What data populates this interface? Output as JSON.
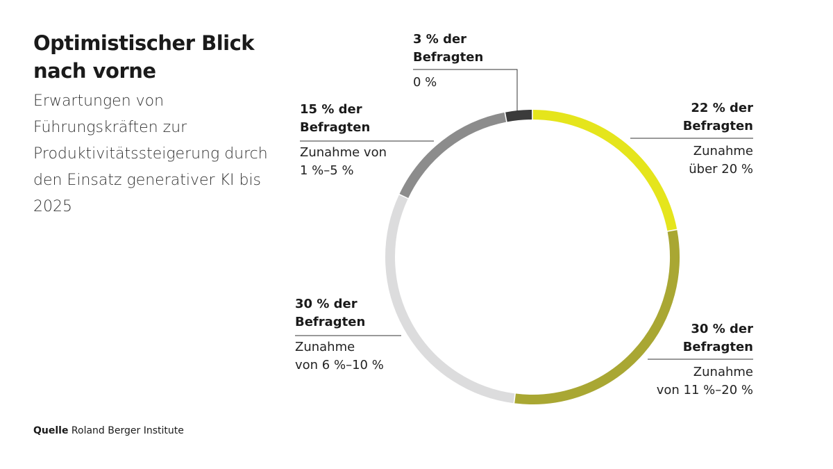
{
  "chart_data": {
    "type": "donut",
    "title": "Optimistischer Blick nach vorne",
    "subtitle": "Erwartungen von Führungskräften zur Produktivitätssteigerung durch den Einsatz generativer KI bis 2025",
    "categories": [
      "Zunahme\nüber 20 %",
      "Zunahme\nvon 11 %–20 %",
      "Zunahme\nvon 6 %–10 %",
      "Zunahme von\n1 %–5 %",
      "0 %"
    ],
    "values": [
      22,
      30,
      30,
      15,
      3
    ],
    "value_labels": [
      "22 % der\nBefragten",
      "30 % der\nBefragten",
      "30 % der\nBefragten",
      "15 % der\nBefragten",
      "3 % der\nBefragten"
    ],
    "colors": [
      "#e5e51c",
      "#a9a733",
      "#dcdcdd",
      "#8c8c8c",
      "#3b3b3b"
    ],
    "source_label": "Quelle",
    "source": "Roland Berger Institute"
  }
}
